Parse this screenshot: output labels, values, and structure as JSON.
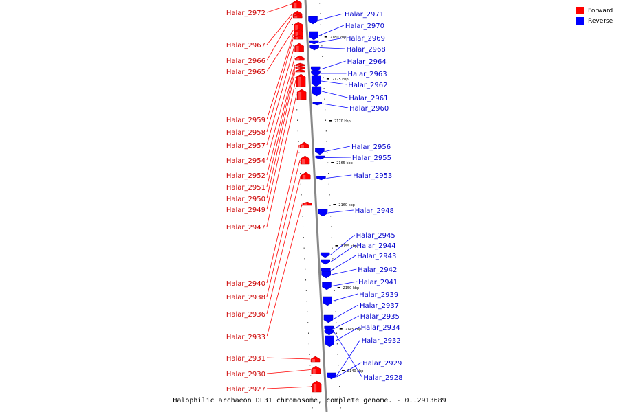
{
  "legend": [
    {
      "label": "Forward",
      "color": "#ff0000"
    },
    {
      "label": "Reverse",
      "color": "#0000ff"
    }
  ],
  "footer": "Halophilic archaeon DL31 chromosome, complete genome. - 0..2913689",
  "colors": {
    "forward": "#ff0000",
    "reverse": "#0000ff",
    "backbone": "#888888"
  },
  "scale_labels": [
    "2180 kbp",
    "2175 kbp",
    "2170 kbp",
    "2165 kbp",
    "2160 kbp",
    "2155 kbp",
    "2150 kbp",
    "2145 kbp",
    "2140 kbp"
  ],
  "genes_forward": [
    "Halar_2972",
    "Halar_2967",
    "Halar_2966",
    "Halar_2965",
    "Halar_2959",
    "Halar_2958",
    "Halar_2957",
    "Halar_2954",
    "Halar_2952",
    "Halar_2951",
    "Halar_2950",
    "Halar_2949",
    "Halar_2947",
    "Halar_2940",
    "Halar_2938",
    "Halar_2936",
    "Halar_2933",
    "Halar_2931",
    "Halar_2930",
    "Halar_2927"
  ],
  "genes_reverse": [
    "Halar_2971",
    "Halar_2970",
    "Halar_2969",
    "Halar_2968",
    "Halar_2964",
    "Halar_2963",
    "Halar_2962",
    "Halar_2961",
    "Halar_2960",
    "Halar_2956",
    "Halar_2955",
    "Halar_2953",
    "Halar_2948",
    "Halar_2945",
    "Halar_2944",
    "Halar_2943",
    "Halar_2942",
    "Halar_2941",
    "Halar_2939",
    "Halar_2937",
    "Halar_2935",
    "Halar_2934",
    "Halar_2932",
    "Halar_2929",
    "Halar_2928"
  ]
}
